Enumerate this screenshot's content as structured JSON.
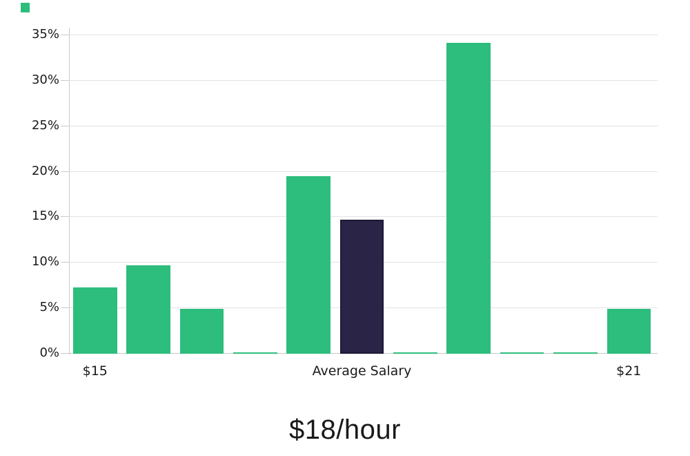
{
  "chart_data": {
    "type": "bar",
    "title": "$18/hour",
    "xlabel": "",
    "ylabel": "",
    "ylim": [
      0,
      35.84
    ],
    "grid": "horizontal",
    "legend": "none",
    "y_ticks": [
      {
        "value": 0,
        "label": "0%"
      },
      {
        "value": 5,
        "label": "5%"
      },
      {
        "value": 10,
        "label": "10%"
      },
      {
        "value": 15,
        "label": "15%"
      },
      {
        "value": 20,
        "label": "20%"
      },
      {
        "value": 25,
        "label": "25%"
      },
      {
        "value": 30,
        "label": "30%"
      },
      {
        "value": 35,
        "label": "35%"
      }
    ],
    "bars": [
      {
        "value": 7.3,
        "role": "distribution"
      },
      {
        "value": 9.7,
        "role": "distribution"
      },
      {
        "value": 4.9,
        "role": "distribution"
      },
      {
        "value": 0.1,
        "role": "distribution"
      },
      {
        "value": 19.5,
        "role": "distribution"
      },
      {
        "value": 14.7,
        "role": "average-highlight"
      },
      {
        "value": 0.1,
        "role": "distribution"
      },
      {
        "value": 34.2,
        "role": "distribution"
      },
      {
        "value": 0.1,
        "role": "distribution"
      },
      {
        "value": 0.1,
        "role": "distribution"
      },
      {
        "value": 4.9,
        "role": "distribution"
      }
    ],
    "x_tick_labels": [
      {
        "bar_index": 0,
        "label": "$15"
      },
      {
        "bar_index": 5,
        "label": "Average Salary"
      },
      {
        "bar_index": 10,
        "label": "$21"
      }
    ]
  },
  "colors": {
    "bar_green": "#2dbd7c",
    "bar_navy_fill": "#2a2447",
    "bar_navy_border": "#1c1936",
    "gridline": "#e2e2e2",
    "axis": "#c9c9c9",
    "text": "#1a1a1a"
  }
}
